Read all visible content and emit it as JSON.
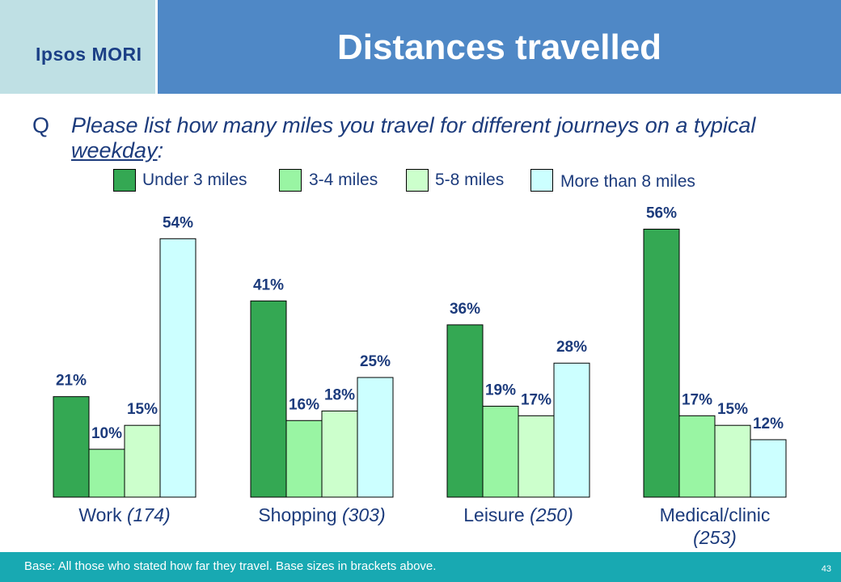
{
  "header": {
    "logo": "Ipsos MORI",
    "title": "Distances travelled"
  },
  "question": {
    "letter": "Q",
    "text_before": "Please list how many miles you travel for different journeys on a typical ",
    "text_underlined": "weekday",
    "text_after": ":"
  },
  "chart_data": {
    "type": "bar",
    "legend_position": "top",
    "grid": false,
    "series": [
      {
        "name": "Under 3 miles",
        "color": "#34a853",
        "values": [
          21,
          41,
          36,
          56
        ]
      },
      {
        "name": "3-4 miles",
        "color": "#99f5a3",
        "values": [
          10,
          16,
          19,
          17
        ]
      },
      {
        "name": "5-8 miles",
        "color": "#ccffcc",
        "values": [
          15,
          18,
          17,
          15
        ]
      },
      {
        "name": "More than 8 miles",
        "color": "#ccffff",
        "values": [
          54,
          25,
          28,
          12
        ]
      }
    ],
    "categories": [
      {
        "name": "Work",
        "base": "(174)"
      },
      {
        "name": "Shopping",
        "base": "(303)"
      },
      {
        "name": "Leisure",
        "base": "(250)"
      },
      {
        "name": "Medical/clinic",
        "base": "(253)"
      }
    ],
    "value_suffix": "%",
    "ylim": [
      0,
      60
    ]
  },
  "footer": {
    "base_text": "Base: All those who stated how far they travel.   Base sizes in brackets above.",
    "page_number": "43"
  },
  "colors": {
    "title_bar": "#4f88c6",
    "logo_bg": "#bfe0e4",
    "footer_bg": "#18a9b2",
    "text_navy": "#1c3b7c"
  }
}
